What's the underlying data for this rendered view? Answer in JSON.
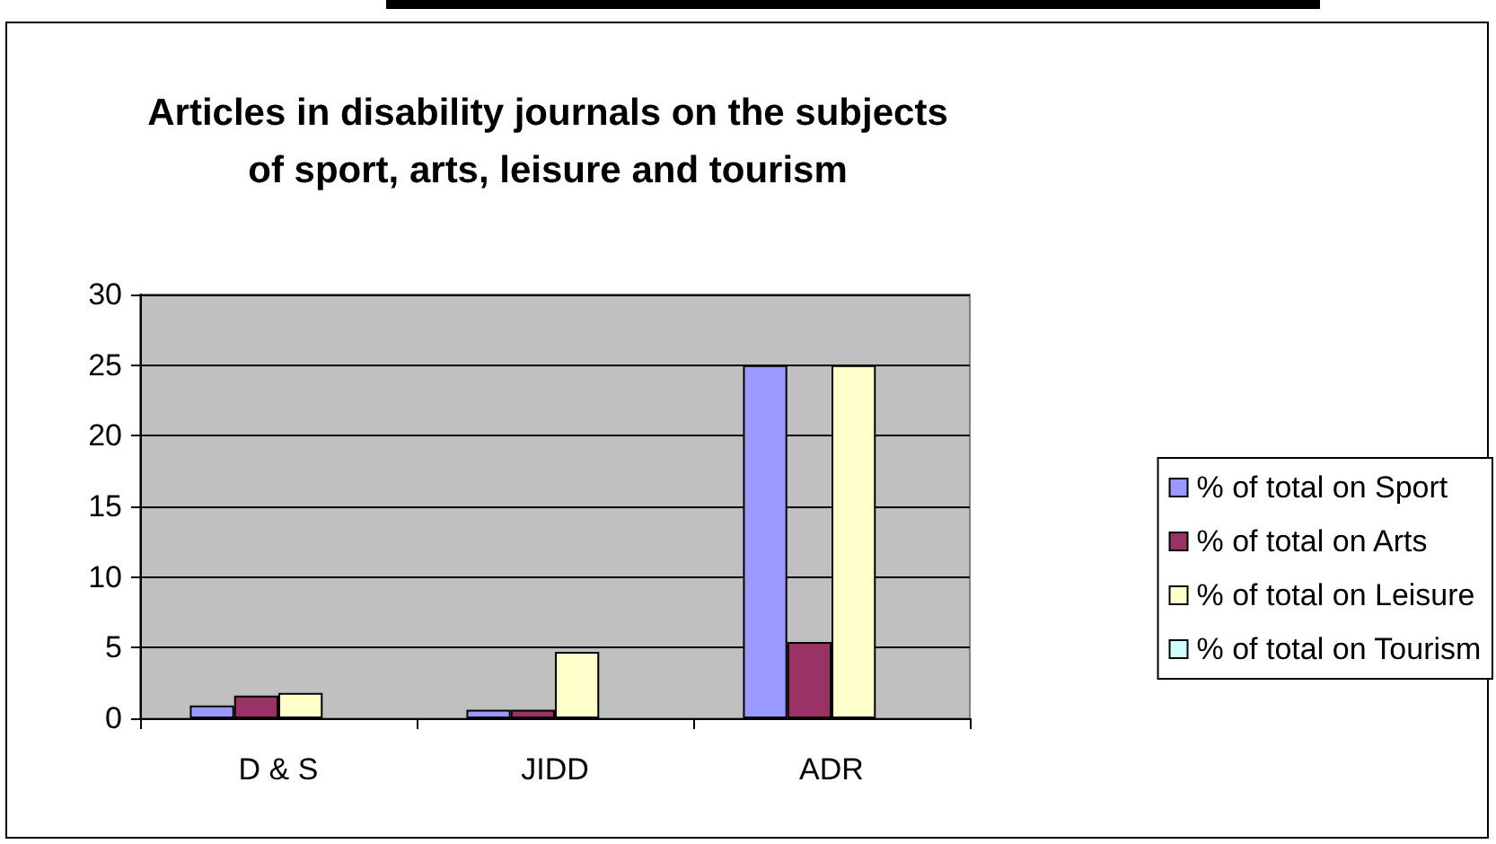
{
  "chart_data": {
    "type": "bar",
    "title": "Articles in disability journals on the subjects\nof sport, arts, leisure and tourism",
    "categories": [
      "D & S",
      "JIDD",
      "ADR"
    ],
    "series": [
      {
        "name": "% of total on Sport",
        "color": "#9999ff",
        "values": [
          0.9,
          0.6,
          25
        ]
      },
      {
        "name": "% of total on Arts",
        "color": "#993366",
        "values": [
          1.6,
          0.6,
          5.4
        ]
      },
      {
        "name": "% of total on Leisure",
        "color": "#ffffcc",
        "values": [
          1.8,
          4.7,
          25
        ]
      },
      {
        "name": "% of total on Tourism",
        "color": "#ccffff",
        "values": [
          0,
          0,
          0
        ]
      }
    ],
    "ylim": [
      0,
      30
    ],
    "yticks": [
      0,
      5,
      10,
      15,
      20,
      25,
      30
    ],
    "grid": "y",
    "legend": "right"
  }
}
